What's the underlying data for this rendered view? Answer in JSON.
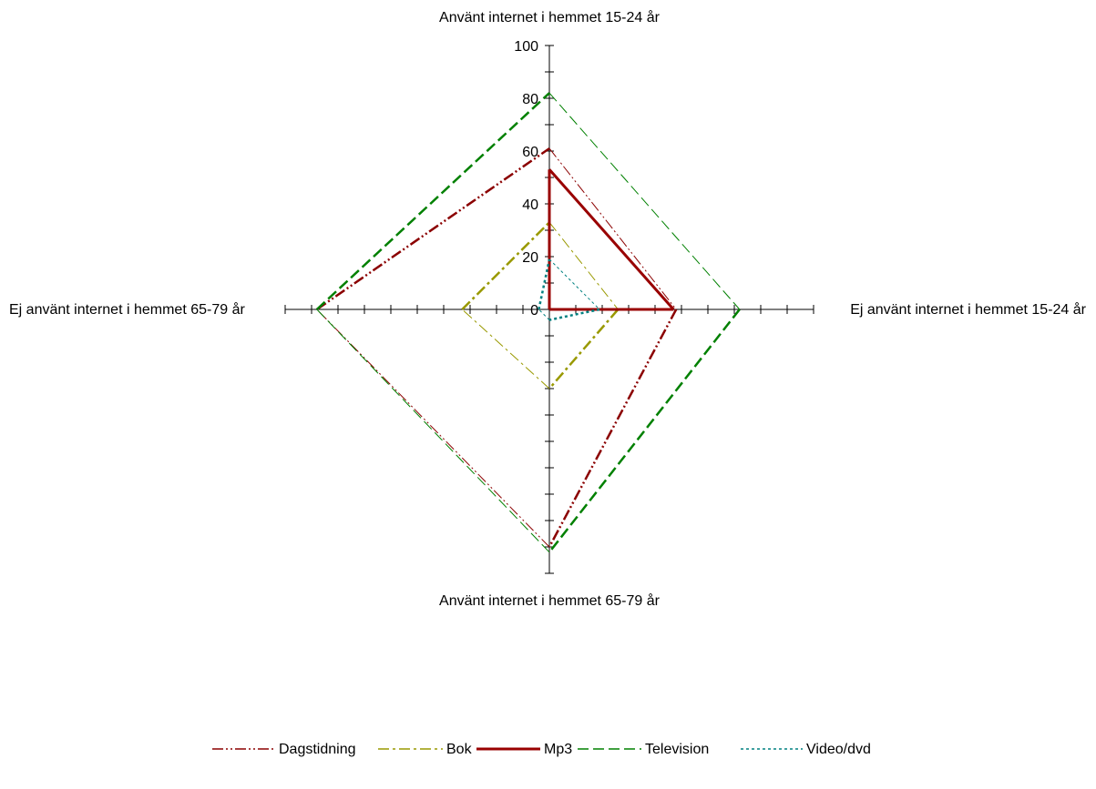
{
  "chart_data": {
    "type": "radar",
    "title": "",
    "axes": [
      "Använt internet i hemmet 15-24 år",
      "Ej använt internet i hemmet 15-24 år",
      "Använt internet i hemmet 65-79 år",
      "Ej använt internet i hemmet 65-79 år"
    ],
    "radial_range": [
      0,
      100
    ],
    "radial_ticks": [
      0,
      20,
      40,
      60,
      80,
      100
    ],
    "radial_tick_labels": [
      "0",
      "20",
      "40",
      "60",
      "80",
      "100"
    ],
    "legend_position": "bottom",
    "series": [
      {
        "name": "Dagstidning",
        "values": [
          61,
          48,
          90,
          88
        ],
        "color": "#8B0000"
      },
      {
        "name": "Bok",
        "values": [
          33,
          26,
          30,
          33
        ],
        "color": "#999900"
      },
      {
        "name": "Mp3",
        "values": [
          53,
          47,
          0,
          0
        ],
        "color": "#990000"
      },
      {
        "name": "Television",
        "values": [
          82,
          72,
          92,
          88
        ],
        "color": "#008000"
      },
      {
        "name": "Video/dvd",
        "values": [
          19,
          19,
          4,
          4
        ],
        "color": "#008080"
      }
    ]
  }
}
